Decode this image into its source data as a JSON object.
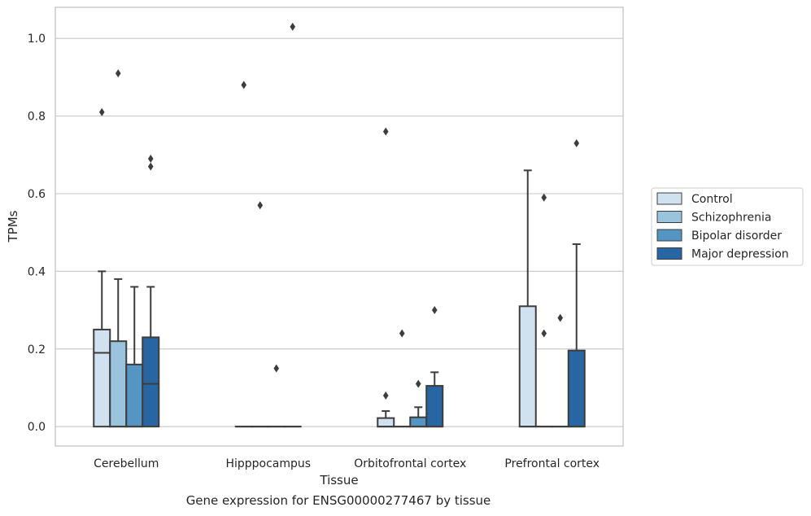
{
  "caption": "Gene expression for ENSG00000277467 by tissue",
  "chart_data": {
    "type": "box",
    "xlabel": "Tissue",
    "ylabel": "TPMs",
    "ylim": [
      -0.05,
      1.08
    ],
    "yticks": [
      "0.0",
      "0.2",
      "0.4",
      "0.6",
      "0.8",
      "1.0"
    ],
    "grid": true,
    "legend_position": "right, outside plot",
    "categories": [
      "Cerebellum",
      "Hipppocampus",
      "Orbitofrontal cortex",
      "Prefrontal cortex"
    ],
    "series": [
      {
        "name": "Control",
        "color": "#d0e1f0",
        "boxes": [
          {
            "q1": 0.0,
            "median": 0.19,
            "q3": 0.25,
            "whisker_low": 0.0,
            "whisker_high": 0.4,
            "outliers": [
              0.81
            ]
          },
          {
            "q1": 0.0,
            "median": 0.0,
            "q3": 0.0,
            "whisker_low": 0.0,
            "whisker_high": 0.0,
            "outliers": [
              0.88
            ]
          },
          {
            "q1": 0.0,
            "median": 0.0,
            "q3": 0.022,
            "whisker_low": 0.0,
            "whisker_high": 0.04,
            "outliers": [
              0.08,
              0.76
            ]
          },
          {
            "q1": 0.0,
            "median": 0.0,
            "q3": 0.31,
            "whisker_low": 0.0,
            "whisker_high": 0.66,
            "outliers": []
          }
        ]
      },
      {
        "name": "Schizophrenia",
        "color": "#9ac3de",
        "boxes": [
          {
            "q1": 0.0,
            "median": 0.0,
            "q3": 0.22,
            "whisker_low": 0.0,
            "whisker_high": 0.38,
            "outliers": [
              0.91
            ]
          },
          {
            "q1": 0.0,
            "median": 0.0,
            "q3": 0.0,
            "whisker_low": 0.0,
            "whisker_high": 0.0,
            "outliers": [
              0.57
            ]
          },
          {
            "q1": 0.0,
            "median": 0.0,
            "q3": 0.0,
            "whisker_low": 0.0,
            "whisker_high": 0.0,
            "outliers": [
              0.24
            ]
          },
          {
            "q1": 0.0,
            "median": 0.0,
            "q3": 0.0,
            "whisker_low": 0.0,
            "whisker_high": 0.0,
            "outliers": [
              0.24,
              0.59
            ]
          }
        ]
      },
      {
        "name": "Bipolar disorder",
        "color": "#5595c4",
        "boxes": [
          {
            "q1": 0.0,
            "median": 0.0,
            "q3": 0.16,
            "whisker_low": 0.0,
            "whisker_high": 0.36,
            "outliers": []
          },
          {
            "q1": 0.0,
            "median": 0.0,
            "q3": 0.0,
            "whisker_low": 0.0,
            "whisker_high": 0.0,
            "outliers": [
              0.15
            ]
          },
          {
            "q1": 0.0,
            "median": 0.0,
            "q3": 0.024,
            "whisker_low": 0.0,
            "whisker_high": 0.05,
            "outliers": [
              0.11
            ]
          },
          {
            "q1": 0.0,
            "median": 0.0,
            "q3": 0.0,
            "whisker_low": 0.0,
            "whisker_high": 0.0,
            "outliers": [
              0.28
            ]
          }
        ]
      },
      {
        "name": "Major depression",
        "color": "#2865a3",
        "boxes": [
          {
            "q1": 0.0,
            "median": 0.11,
            "q3": 0.23,
            "whisker_low": 0.0,
            "whisker_high": 0.36,
            "outliers": [
              0.67,
              0.69
            ]
          },
          {
            "q1": 0.0,
            "median": 0.0,
            "q3": 0.0,
            "whisker_low": 0.0,
            "whisker_high": 0.0,
            "outliers": [
              1.03
            ]
          },
          {
            "q1": 0.0,
            "median": 0.0,
            "q3": 0.105,
            "whisker_low": 0.0,
            "whisker_high": 0.14,
            "outliers": [
              0.3
            ]
          },
          {
            "q1": 0.0,
            "median": 0.0,
            "q3": 0.196,
            "whisker_low": 0.0,
            "whisker_high": 0.47,
            "outliers": [
              0.73
            ]
          }
        ]
      }
    ]
  }
}
